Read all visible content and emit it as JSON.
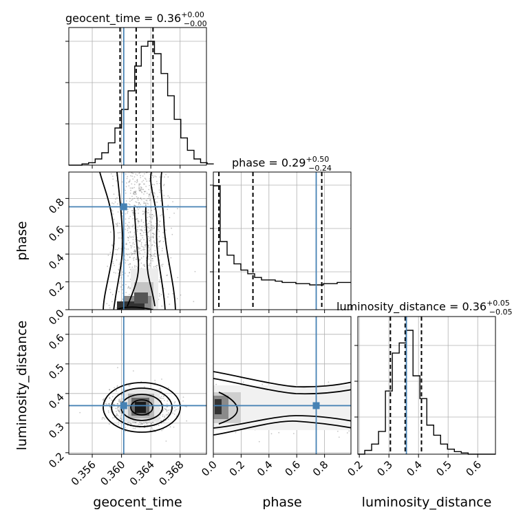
{
  "chart_data": {
    "type": "corner",
    "parameters": [
      "geocent_time",
      "phase",
      "luminosity_distance"
    ],
    "titles": [
      {
        "param": "geocent_time",
        "prefix": "geocent_time = ",
        "value": "0.36",
        "plus": "+0.00",
        "minus": "−0.00"
      },
      {
        "param": "phase",
        "prefix": "phase = ",
        "value": "0.29",
        "plus": "+0.50",
        "minus": "−0.24"
      },
      {
        "param": "luminosity_distance",
        "prefix": "luminosity_distance = ",
        "value": "0.36",
        "plus": "+0.05",
        "minus": "−0.05"
      }
    ],
    "axis_labels": {
      "x": [
        "geocent_time",
        "phase",
        "luminosity_distance"
      ],
      "y": [
        "phase",
        "luminosity_distance"
      ]
    },
    "ranges": {
      "geocent_time": [
        0.3528,
        0.3716
      ],
      "phase": [
        0.0,
        0.99
      ],
      "luminosity_distance": [
        0.195,
        0.66
      ]
    },
    "ticks": {
      "geocent_time": [
        "0.356",
        "0.360",
        "0.364",
        "0.368"
      ],
      "phase": [
        "0.0",
        "0.2",
        "0.4",
        "0.6",
        "0.8"
      ],
      "luminosity_distance": [
        "0.2",
        "0.3",
        "0.4",
        "0.5",
        "0.6"
      ]
    },
    "truths": {
      "geocent_time": 0.3603,
      "phase": 0.74,
      "luminosity_distance": 0.359
    },
    "quantiles": {
      "geocent_time": [
        0.3598,
        0.362,
        0.3643
      ],
      "phase": [
        0.04,
        0.285,
        0.78
      ],
      "luminosity_distance": [
        0.305,
        0.355,
        0.41
      ]
    },
    "histograms": {
      "geocent_time": {
        "edges_start": 0.3528,
        "bin_width": 0.0009,
        "counts": [
          0,
          0,
          1,
          2,
          5,
          10,
          18,
          30,
          45,
          60,
          80,
          96,
          100,
          90,
          74,
          56,
          37,
          22,
          12,
          5,
          2,
          1
        ]
      },
      "phase": {
        "edges_start": 0.0,
        "bin_width": 0.0495,
        "counts": [
          100,
          55,
          44,
          37,
          32,
          29,
          26,
          24,
          24,
          23,
          22,
          22,
          21,
          21,
          20,
          20,
          21,
          21,
          22,
          22
        ]
      },
      "luminosity_distance": {
        "edges_start": 0.195,
        "bin_width": 0.0233,
        "counts": [
          0,
          3,
          8,
          18,
          50,
          80,
          88,
          98,
          62,
          44,
          23,
          15,
          8,
          4,
          2,
          1,
          0,
          0,
          0,
          0
        ]
      }
    },
    "contour_levels": [
      "0.118",
      "0.393",
      "0.675",
      "0.865"
    ],
    "truth_color": "#4682b4",
    "grid": true
  }
}
